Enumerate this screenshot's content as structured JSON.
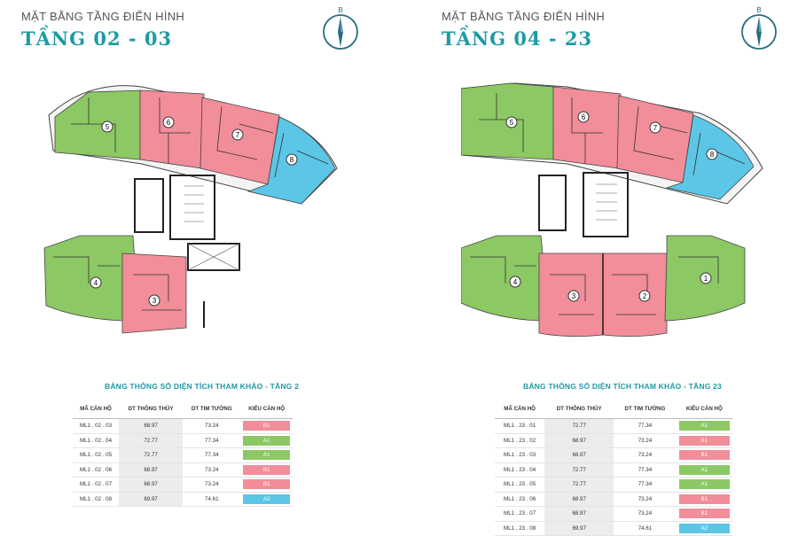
{
  "panels": [
    {
      "subtitle": "MẶT BẰNG TẦNG ĐIỂN HÌNH",
      "title": "TẦNG 02 - 03",
      "compass_label": "B",
      "unit_numbers": [
        "5",
        "6",
        "7",
        "8",
        "4",
        "3"
      ],
      "table_title": "BẢNG THÔNG SỐ DIỆN TÍCH THAM KHẢO - TẦNG 2",
      "headers": [
        "MÃ CĂN HỘ",
        "DT THÔNG THỦY",
        "DT TIM TƯỜNG",
        "KIỂU CĂN HỘ"
      ],
      "rows": [
        {
          "code": "ML1 . 02 . 03",
          "net": "68.97",
          "gross": "73.24",
          "type": "B1",
          "color": "#f28d9a"
        },
        {
          "code": "ML1 . 02 . 04",
          "net": "72.77",
          "gross": "77.34",
          "type": "A1",
          "color": "#8cc864"
        },
        {
          "code": "ML1 . 02 . 05",
          "net": "72.77",
          "gross": "77.34",
          "type": "A1",
          "color": "#8cc864"
        },
        {
          "code": "ML1 . 02 . 06",
          "net": "68.97",
          "gross": "73.24",
          "type": "B1",
          "color": "#f28d9a"
        },
        {
          "code": "ML1 . 02 . 07",
          "net": "68.97",
          "gross": "73.24",
          "type": "B1",
          "color": "#f28d9a"
        },
        {
          "code": "ML1 . 02 . 08",
          "net": "69.97",
          "gross": "74.61",
          "type": "A2",
          "color": "#5cc6e6"
        }
      ]
    },
    {
      "subtitle": "MẶT BẰNG TẦNG ĐIỂN HÌNH",
      "title": "TẦNG 04 - 23",
      "compass_label": "B",
      "unit_numbers": [
        "5",
        "6",
        "7",
        "8",
        "4",
        "3",
        "2",
        "1"
      ],
      "table_title": "BẢNG THÔNG SỐ DIỆN TÍCH THAM KHẢO - TẦNG 23",
      "headers": [
        "MÃ CĂN HỘ",
        "DT THÔNG THỦY",
        "DT TIM TƯỜNG",
        "KIỂU CĂN HỘ"
      ],
      "rows": [
        {
          "code": "ML1 . 23 . 01",
          "net": "72.77",
          "gross": "77.34",
          "type": "A1",
          "color": "#8cc864"
        },
        {
          "code": "ML1 . 23 . 02",
          "net": "68.97",
          "gross": "73.24",
          "type": "B1",
          "color": "#f28d9a"
        },
        {
          "code": "ML1 . 23 . 03",
          "net": "68.97",
          "gross": "73.24",
          "type": "B1",
          "color": "#f28d9a"
        },
        {
          "code": "ML1 . 23 . 04",
          "net": "72.77",
          "gross": "77.34",
          "type": "A1",
          "color": "#8cc864"
        },
        {
          "code": "ML1 . 23 . 05",
          "net": "72.77",
          "gross": "77.34",
          "type": "A1",
          "color": "#8cc864"
        },
        {
          "code": "ML1 . 23 . 06",
          "net": "68.97",
          "gross": "73.24",
          "type": "B1",
          "color": "#f28d9a"
        },
        {
          "code": "ML1 . 23 . 07",
          "net": "68.97",
          "gross": "73.24",
          "type": "B1",
          "color": "#f28d9a"
        },
        {
          "code": "ML1 . 23 . 08",
          "net": "69.97",
          "gross": "74.61",
          "type": "A2",
          "color": "#5cc6e6"
        }
      ]
    }
  ],
  "colors": {
    "accent": "#1e9aa5",
    "green": "#8cc864",
    "pink": "#f28d9a",
    "blue": "#5cc6e6"
  }
}
